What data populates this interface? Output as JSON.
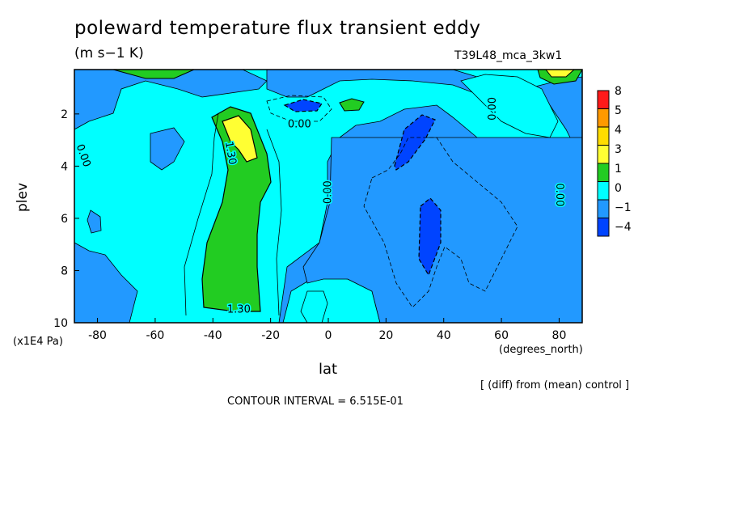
{
  "chart_data": {
    "type": "heatmap",
    "title": "poleward temperature flux transient eddy",
    "units": "(m s−1 K)",
    "run_id": "T39L48_mca_3kw1",
    "xlabel": "lat",
    "xunits": "(degrees_north)",
    "ylabel": "plev",
    "yunits": "(x1E4 Pa)",
    "xlim": [
      -88,
      88
    ],
    "ylim": [
      10,
      0.3
    ],
    "xticks": [
      -80,
      -60,
      -40,
      -20,
      0,
      20,
      40,
      60,
      80
    ],
    "yticks": [
      2,
      4,
      6,
      8,
      10
    ],
    "legend": {
      "position": "right",
      "levels": [
        "8",
        "5",
        "4",
        "3",
        "1",
        "0",
        "−1",
        "−4"
      ],
      "colors": [
        "#ff1a1a",
        "#ff9900",
        "#ffdd00",
        "#ffff33",
        "#22cc22",
        "#00ffff",
        "#2299ff",
        "#0044ff"
      ]
    },
    "contour_labels": [
      {
        "text": "0.00",
        "lat": -85,
        "plev": 3.6,
        "rot": 70
      },
      {
        "text": "1.30",
        "lat": -34,
        "plev": 3.5,
        "rot": 80
      },
      {
        "text": "0.00",
        "lat": -10,
        "plev": 2.4,
        "rot": 0
      },
      {
        "text": "0.00",
        "lat": 0,
        "plev": 5.0,
        "rot": -90
      },
      {
        "text": "0.00",
        "lat": 57,
        "plev": 1.8,
        "rot": -90
      },
      {
        "text": "0.00",
        "lat": 80,
        "plev": 5.1,
        "rot": 90
      },
      {
        "text": "1.30",
        "lat": -31,
        "plev": 9.5,
        "rot": 0
      }
    ],
    "contour_interval_text": "CONTOUR INTERVAL = 6.515E-01",
    "diff_note": "[ (diff) from (mean) control ]"
  }
}
